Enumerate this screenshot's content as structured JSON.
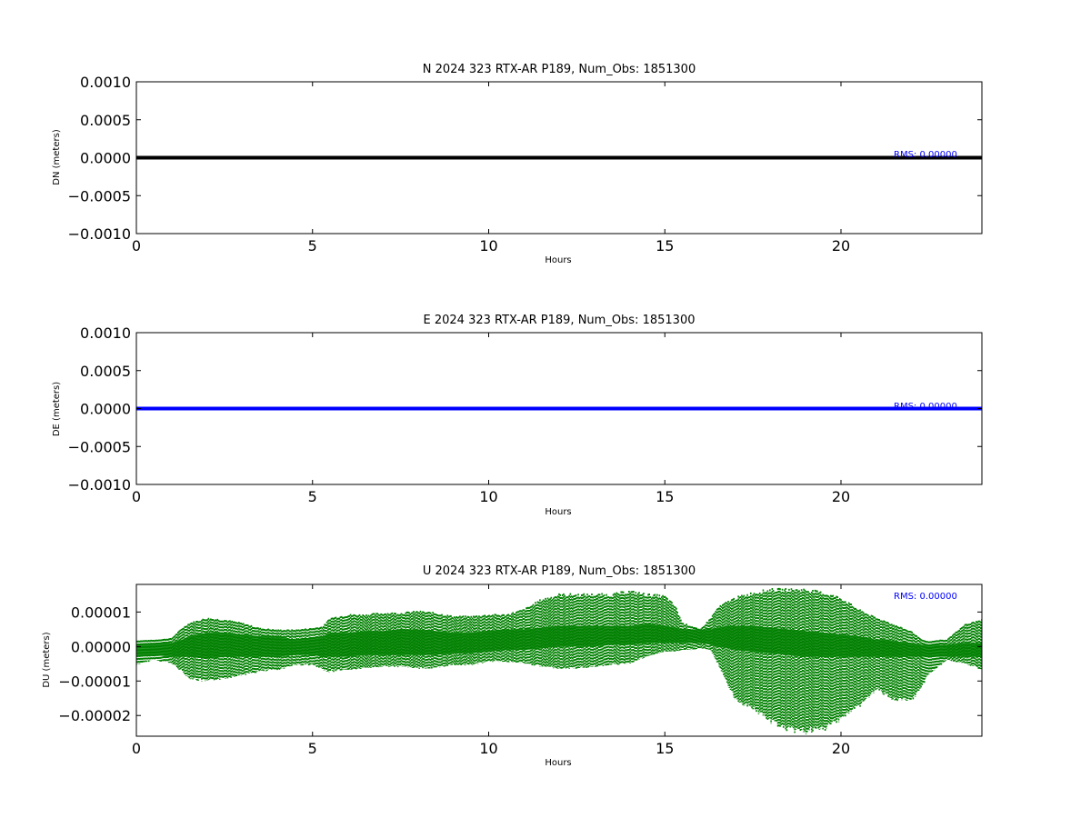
{
  "chart_data": [
    {
      "type": "scatter",
      "title": "N 2024 323 RTX-AR  P189, Num_Obs: 1851300",
      "xlabel": "Hours",
      "ylabel": "DN (meters)",
      "xlim": [
        0,
        24
      ],
      "ylim": [
        -0.001,
        0.001
      ],
      "x_ticks": [
        0,
        5,
        10,
        15,
        20
      ],
      "x_tick_labels": [
        "0",
        "5",
        "10",
        "15",
        "20"
      ],
      "y_ticks": [
        0.001,
        0.0005,
        0.0,
        -0.0005,
        -0.001
      ],
      "y_tick_labels": [
        "0.0010",
        "0.0005",
        "0.0000",
        "−0.0005",
        "−0.0010"
      ],
      "grid": false,
      "color": "#000000",
      "annotation": "RMS:  0.00000",
      "annotation_color": "#0000ff",
      "series": [
        {
          "x": [
            0,
            2,
            4,
            6,
            8,
            10,
            12,
            14,
            16,
            18,
            20,
            22,
            24
          ],
          "y": [
            0,
            0,
            0,
            0,
            0,
            0,
            0,
            0,
            0,
            0,
            0,
            0,
            0
          ]
        }
      ]
    },
    {
      "type": "scatter",
      "title": "E 2024 323 RTX-AR  P189, Num_Obs: 1851300",
      "xlabel": "Hours",
      "ylabel": "DE (meters)",
      "xlim": [
        0,
        24
      ],
      "ylim": [
        -0.001,
        0.001
      ],
      "x_ticks": [
        0,
        5,
        10,
        15,
        20
      ],
      "x_tick_labels": [
        "0",
        "5",
        "10",
        "15",
        "20"
      ],
      "y_ticks": [
        0.001,
        0.0005,
        0.0,
        -0.0005,
        -0.001
      ],
      "y_tick_labels": [
        "0.0010",
        "0.0005",
        "0.0000",
        "−0.0005",
        "−0.0010"
      ],
      "grid": false,
      "color": "#0000ff",
      "annotation": "RMS:  0.00000",
      "annotation_color": "#0000ff",
      "series": [
        {
          "x": [
            0,
            2,
            4,
            6,
            8,
            10,
            12,
            14,
            16,
            18,
            20,
            22,
            24
          ],
          "y": [
            0,
            0,
            0,
            0,
            0,
            0,
            0,
            0,
            0,
            0,
            0,
            0,
            0
          ]
        }
      ]
    },
    {
      "type": "scatter",
      "title": "U 2024 323 RTX-AR  P189, Num_Obs: 1851300",
      "xlabel": "Hours",
      "ylabel": "DU (meters)",
      "xlim": [
        0,
        24
      ],
      "ylim": [
        -2.6e-05,
        1.8e-05
      ],
      "x_ticks": [
        0,
        5,
        10,
        15,
        20
      ],
      "x_tick_labels": [
        "0",
        "5",
        "10",
        "15",
        "20"
      ],
      "y_ticks": [
        1e-05,
        0.0,
        -1e-05,
        -2e-05
      ],
      "y_tick_labels": [
        "0.00001",
        "0.00000",
        "−0.00001",
        "−0.00002"
      ],
      "grid": false,
      "color": "#008000",
      "annotation": "RMS:  0.00000",
      "annotation_color": "#0000ff",
      "envelope": {
        "x": [
          0,
          0.5,
          1,
          1.3,
          1.5,
          2,
          2.5,
          3,
          3.5,
          4,
          4.5,
          5,
          5.3,
          5.5,
          6,
          6.5,
          7,
          7.5,
          8,
          8.5,
          9,
          9.5,
          10,
          10.5,
          11,
          11.5,
          12,
          12.5,
          13,
          13.5,
          14,
          14.5,
          15,
          15.3,
          15.5,
          15.8,
          16,
          16.3,
          16.5,
          16.8,
          17,
          17.5,
          18,
          18.5,
          19,
          19.5,
          20,
          20.5,
          21,
          21.3,
          21.5,
          22,
          22.3,
          22.5,
          22.8,
          23,
          23.5,
          24
        ],
        "upper": [
          1.8e-06,
          2e-06,
          2.5e-06,
          5.5e-06,
          7e-06,
          8.5e-06,
          8e-06,
          7e-06,
          5.5e-06,
          5e-06,
          5e-06,
          5.5e-06,
          6e-06,
          8.5e-06,
          9.5e-06,
          9.5e-06,
          1e-05,
          1e-05,
          1.05e-05,
          1e-05,
          9e-06,
          9e-06,
          9.5e-06,
          9.5e-06,
          1.1e-05,
          1.4e-05,
          1.55e-05,
          1.55e-05,
          1.55e-05,
          1.55e-05,
          1.65e-05,
          1.55e-05,
          1.5e-05,
          1.2e-05,
          7e-06,
          6e-06,
          5e-06,
          8.5e-06,
          1.15e-05,
          1.35e-05,
          1.45e-05,
          1.6e-05,
          1.7e-05,
          1.7e-05,
          1.7e-05,
          1.6e-05,
          1.45e-05,
          1.1e-05,
          8.5e-06,
          7.5e-06,
          6.5e-06,
          4.5e-06,
          2e-06,
          1.5e-06,
          2e-06,
          2e-06,
          6.5e-06,
          8e-06
        ],
        "lower": [
          -5.5e-06,
          -4e-06,
          -5e-06,
          -7.5e-06,
          -9.5e-06,
          -1.05e-05,
          -9.5e-06,
          -8.5e-06,
          -7.5e-06,
          -7e-06,
          -5.5e-06,
          -5.5e-06,
          -7e-06,
          -7.5e-06,
          -7e-06,
          -6.5e-06,
          -6e-06,
          -6e-06,
          -6.5e-06,
          -6.5e-06,
          -5.5e-06,
          -5.5e-06,
          -4.5e-06,
          -4.5e-06,
          -5e-06,
          -6e-06,
          -6.5e-06,
          -6.5e-06,
          -6e-06,
          -5.5e-06,
          -5e-06,
          -3e-06,
          -1.5e-06,
          -1.5e-06,
          -1e-06,
          -1e-06,
          -5e-07,
          -1e-06,
          -5e-06,
          -1.15e-05,
          -1.6e-05,
          -1.85e-05,
          -2.25e-05,
          -2.5e-05,
          -2.55e-05,
          -2.5e-05,
          -2.15e-05,
          -1.8e-05,
          -1.3e-05,
          -1.45e-05,
          -1.6e-05,
          -1.65e-05,
          -1.2e-05,
          -8e-06,
          -6e-06,
          -4e-06,
          -5e-06,
          -7e-06
        ],
        "core_upper": [
          5e-07,
          1e-06,
          1e-06,
          2e-06,
          3e-06,
          4e-06,
          4e-06,
          3.5e-06,
          3e-06,
          3e-06,
          2e-06,
          2.5e-06,
          3e-06,
          4e-06,
          4e-06,
          4.5e-06,
          4.5e-06,
          5e-06,
          5e-06,
          4.5e-06,
          4e-06,
          4e-06,
          4.5e-06,
          5e-06,
          5e-06,
          5.5e-06,
          6e-06,
          6e-06,
          6e-06,
          6e-06,
          6e-06,
          6.5e-06,
          6e-06,
          5.5e-06,
          5e-06,
          5e-06,
          5e-06,
          5e-06,
          5.5e-06,
          6e-06,
          6e-06,
          6e-06,
          5.5e-06,
          5e-06,
          4.5e-06,
          4e-06,
          3.5e-06,
          3e-06,
          2e-06,
          2e-06,
          1.5e-06,
          1e-06,
          5e-07,
          5e-07,
          5e-07,
          5e-07,
          1e-06,
          1e-06
        ],
        "core_lower": [
          -3e-06,
          -2.5e-06,
          -3e-06,
          -3e-06,
          -3e-06,
          -3.5e-06,
          -3e-06,
          -3e-06,
          -3e-06,
          -3e-06,
          -2.5e-06,
          -2.5e-06,
          -3e-06,
          -3e-06,
          -3e-06,
          -2.5e-06,
          -2.5e-06,
          -2.5e-06,
          -2.5e-06,
          -2.5e-06,
          -2e-06,
          -2e-06,
          -1.5e-06,
          -1e-06,
          -1e-06,
          -5e-07,
          0,
          0,
          0,
          5e-07,
          5e-07,
          1e-06,
          1e-06,
          1e-06,
          1e-06,
          1e-06,
          1e-06,
          5e-07,
          0,
          -5e-07,
          -1e-06,
          -1.5e-06,
          -2e-06,
          -2.5e-06,
          -3e-06,
          -3e-06,
          -3e-06,
          -3e-06,
          -3e-06,
          -3e-06,
          -3e-06,
          -3e-06,
          -3e-06,
          -3e-06,
          -3e-06,
          -3e-06,
          -3e-06,
          -3e-06
        ]
      }
    }
  ]
}
